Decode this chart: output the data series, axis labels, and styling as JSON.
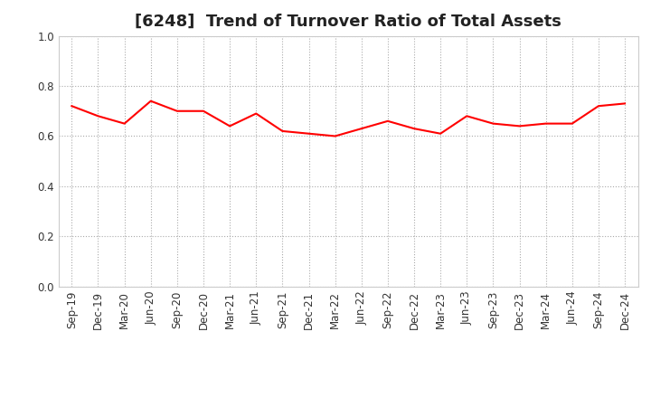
{
  "title": "[6248]  Trend of Turnover Ratio of Total Assets",
  "labels": [
    "Sep-19",
    "Dec-19",
    "Mar-20",
    "Jun-20",
    "Sep-20",
    "Dec-20",
    "Mar-21",
    "Jun-21",
    "Sep-21",
    "Dec-21",
    "Mar-22",
    "Jun-22",
    "Sep-22",
    "Dec-22",
    "Mar-23",
    "Jun-23",
    "Sep-23",
    "Dec-23",
    "Mar-24",
    "Jun-24",
    "Sep-24",
    "Dec-24"
  ],
  "values": [
    0.72,
    0.68,
    0.65,
    0.74,
    0.7,
    0.7,
    0.64,
    0.69,
    0.62,
    0.61,
    0.6,
    0.63,
    0.66,
    0.63,
    0.61,
    0.68,
    0.65,
    0.64,
    0.65,
    0.65,
    0.72,
    0.73
  ],
  "line_color": "#FF0000",
  "line_width": 1.5,
  "ylim": [
    0.0,
    1.0
  ],
  "yticks": [
    0.0,
    0.2,
    0.4,
    0.6,
    0.8,
    1.0
  ],
  "background_color": "#FFFFFF",
  "grid_color": "#AAAAAA",
  "title_fontsize": 13,
  "title_color": "#222222",
  "tick_fontsize": 8.5,
  "tick_color": "#333333",
  "fig_width": 7.2,
  "fig_height": 4.4,
  "dpi": 100
}
